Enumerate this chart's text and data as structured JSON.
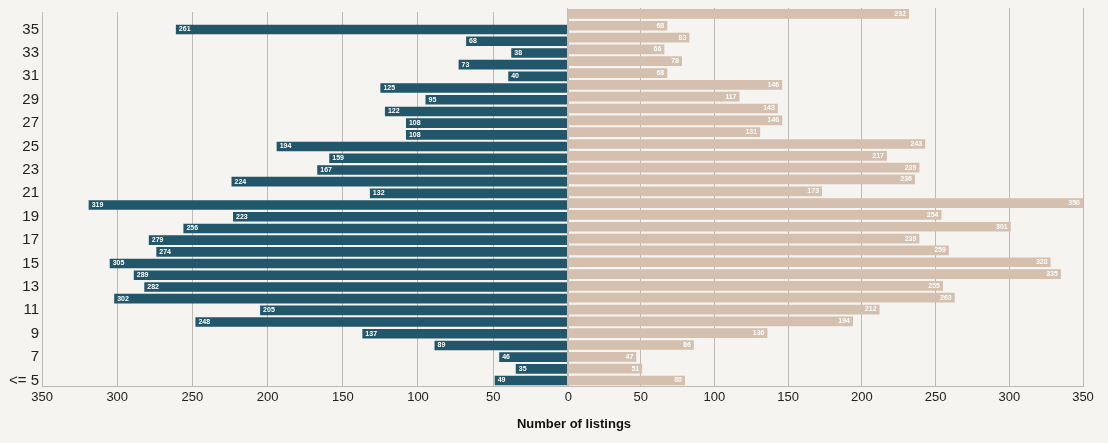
{
  "chart_data": [
    {
      "type": "bar",
      "orientation": "horizontal",
      "xlabel": "Number of listings",
      "categories": [
        null,
        "35",
        null,
        "33",
        null,
        "31",
        null,
        "29",
        null,
        "27",
        null,
        "25",
        null,
        "23",
        null,
        "21",
        null,
        "19",
        null,
        "17",
        null,
        "15",
        null,
        "13",
        null,
        "11",
        null,
        "9",
        null,
        "7",
        null,
        "<= 5"
      ],
      "series": [
        {
          "color": "#22566a",
          "values": [
            null,
            261,
            68,
            38,
            73,
            40,
            125,
            95,
            122,
            108,
            108,
            194,
            159,
            167,
            224,
            132,
            319,
            223,
            256,
            279,
            274,
            305,
            289,
            282,
            302,
            205,
            248,
            137,
            89,
            46,
            35,
            49
          ]
        }
      ],
      "xlim": [
        350,
        0
      ],
      "xticks": [
        350,
        300,
        250,
        200,
        150,
        100,
        50,
        0
      ],
      "data_labels": true,
      "grid": "x"
    },
    {
      "type": "bar",
      "orientation": "horizontal",
      "series": [
        {
          "color": "#d5bfae",
          "values": [
            232,
            68,
            83,
            66,
            78,
            68,
            146,
            117,
            143,
            146,
            131,
            243,
            217,
            239,
            236,
            173,
            350,
            254,
            301,
            239,
            259,
            328,
            335,
            255,
            263,
            212,
            194,
            136,
            86,
            47,
            51,
            80
          ]
        }
      ],
      "xlim": [
        0,
        350
      ],
      "xticks": [
        {
          "value": 0,
          "label": null
        },
        50,
        100,
        150,
        200,
        250,
        300,
        350
      ],
      "data_labels": true,
      "grid": "x",
      "tick_labels": "x"
    }
  ]
}
